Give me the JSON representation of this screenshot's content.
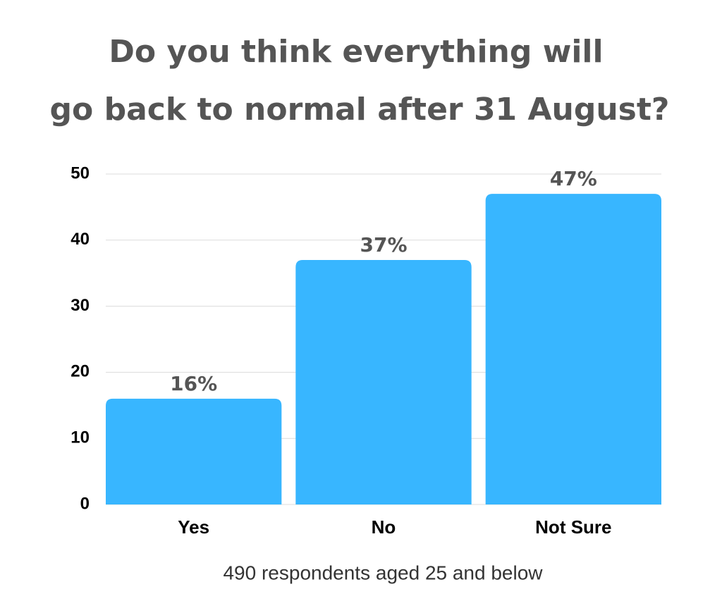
{
  "chart_data": {
    "type": "bar",
    "title": [
      "Do you think everything will",
      "go back to normal after 31 August?"
    ],
    "categories": [
      "Yes",
      "No",
      "Not Sure"
    ],
    "values": [
      16,
      37,
      47
    ],
    "value_labels": [
      "16%",
      "37%",
      "47%"
    ],
    "color": "#38b6ff",
    "ylim": [
      0,
      50
    ],
    "yticks": [
      0,
      10,
      20,
      30,
      40,
      50
    ],
    "grid": true,
    "caption": "490 respondents aged 25 and below"
  }
}
